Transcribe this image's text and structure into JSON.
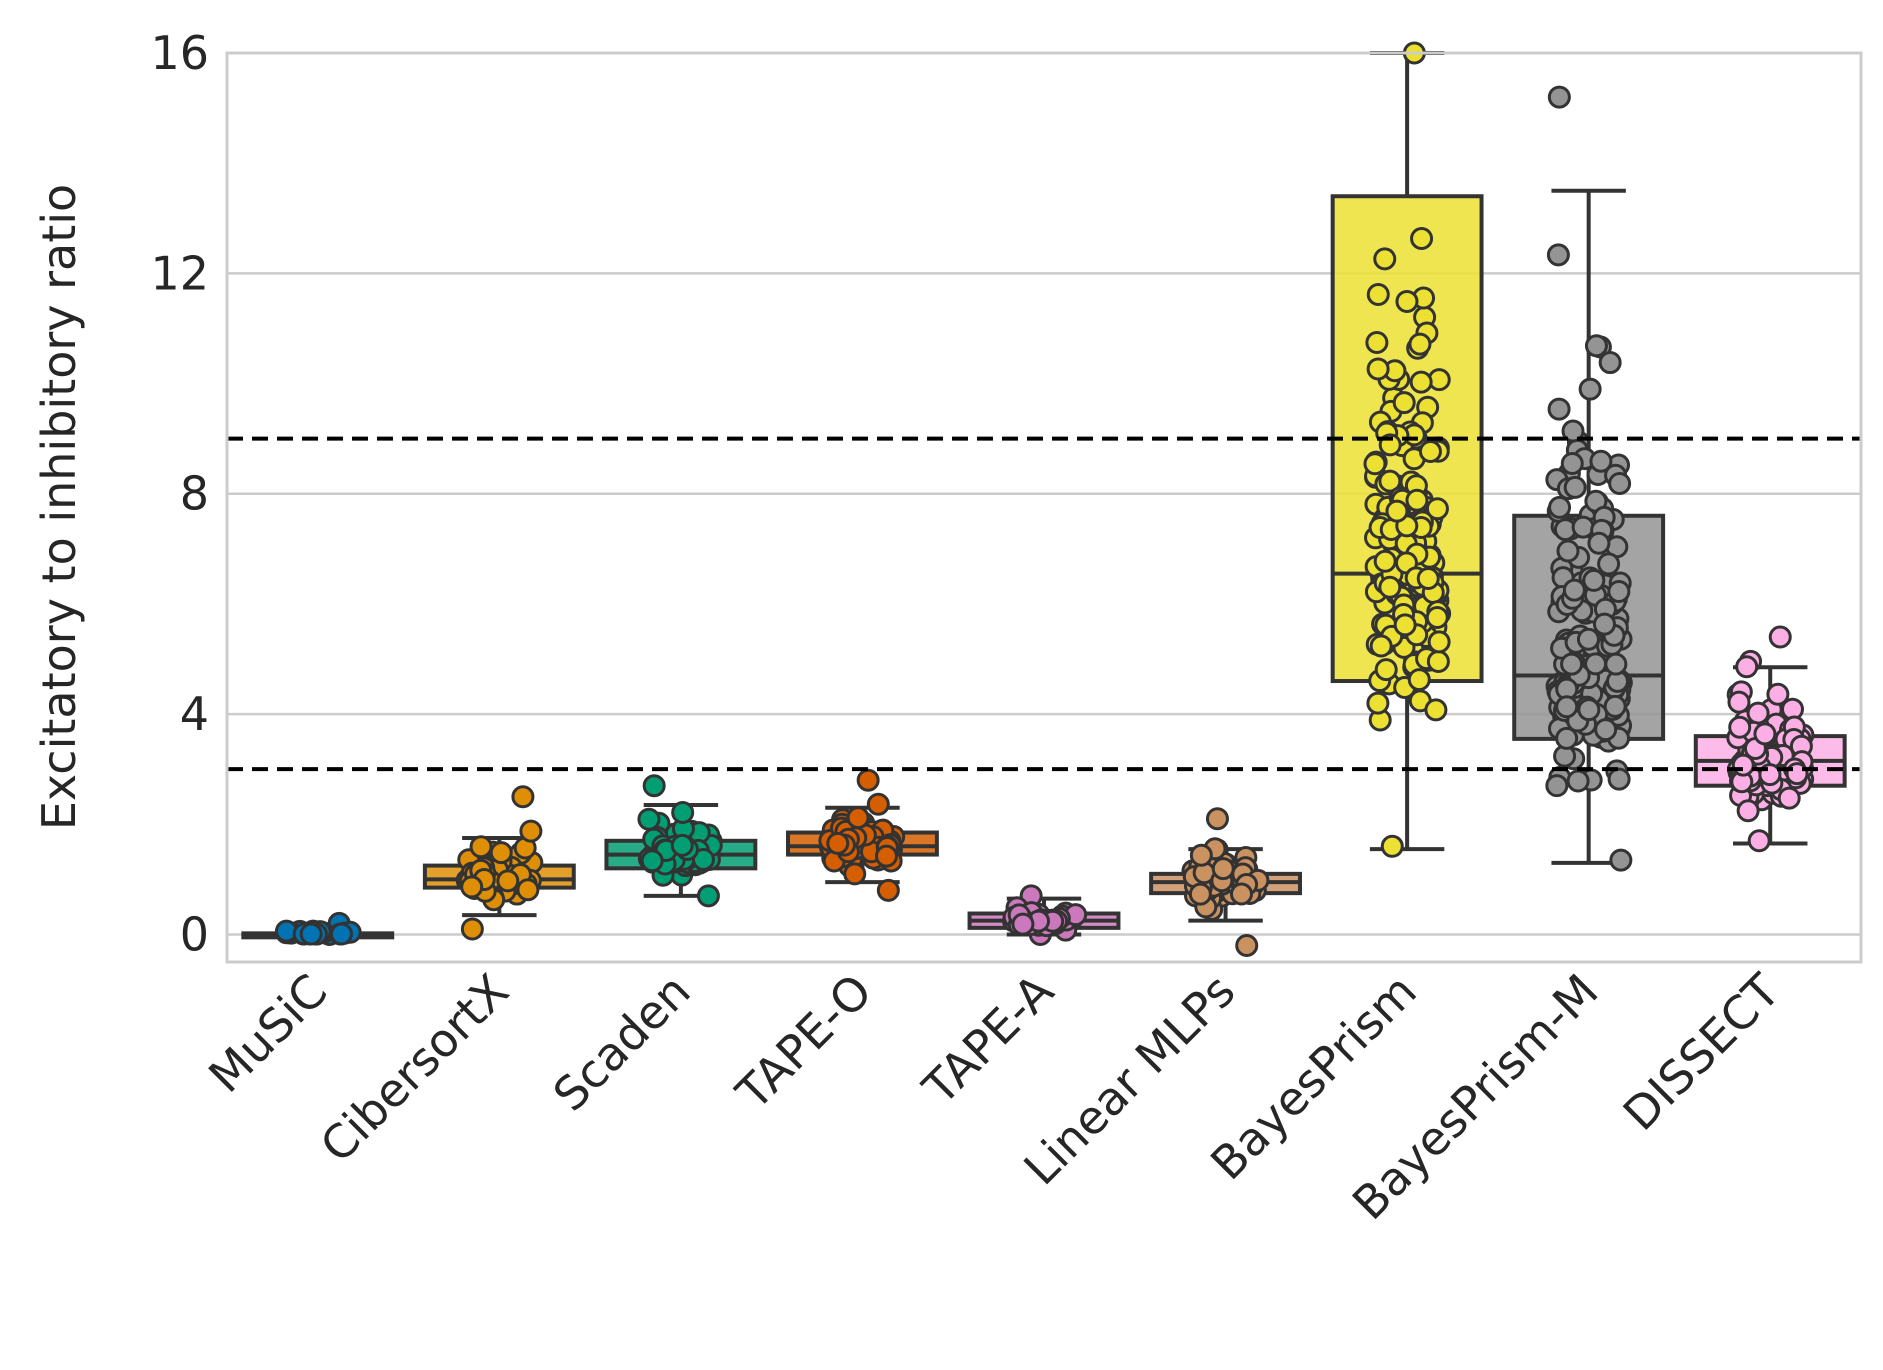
{
  "chart_data": {
    "type": "box",
    "title": "",
    "xlabel": "",
    "ylabel": "Excitatory to inhibitory ratio",
    "ylim": [
      -0.5,
      16
    ],
    "yticks": [
      "0",
      "4",
      "8",
      "12",
      "16"
    ],
    "grid": "horizontal",
    "reference_lines": [
      3,
      9
    ],
    "categories": [
      "MuSiC",
      "CibersortX",
      "Scaden",
      "TAPE-O",
      "TAPE-A",
      "Linear MLPs",
      "BayesPrism",
      "BayesPrism-M",
      "DISSECT"
    ],
    "colors": [
      "#0173b2",
      "#de8f05",
      "#029e73",
      "#d55e00",
      "#cc78bc",
      "#ca9161",
      "#ece133",
      "#949494",
      "#fbafe4"
    ],
    "series": [
      {
        "box": {
          "whisker_low": 0.0,
          "q1": 0.0,
          "median": 0.01,
          "q3": 0.02,
          "whisker_high": 0.05
        },
        "points_range": [
          0.0,
          0.2
        ],
        "n": 20
      },
      {
        "box": {
          "whisker_low": 0.35,
          "q1": 0.85,
          "median": 1.0,
          "q3": 1.25,
          "whisker_high": 1.75
        },
        "points_range": [
          0.1,
          2.5
        ],
        "n": 60
      },
      {
        "box": {
          "whisker_low": 0.7,
          "q1": 1.2,
          "median": 1.45,
          "q3": 1.7,
          "whisker_high": 2.35
        },
        "points_range": [
          0.7,
          2.7
        ],
        "n": 70
      },
      {
        "box": {
          "whisker_low": 0.95,
          "q1": 1.45,
          "median": 1.6,
          "q3": 1.85,
          "whisker_high": 2.3
        },
        "points_range": [
          0.8,
          2.8
        ],
        "n": 70
      },
      {
        "box": {
          "whisker_low": 0.0,
          "q1": 0.12,
          "median": 0.25,
          "q3": 0.38,
          "whisker_high": 0.65
        },
        "points_range": [
          0.0,
          0.7
        ],
        "n": 50
      },
      {
        "box": {
          "whisker_low": 0.25,
          "q1": 0.75,
          "median": 0.95,
          "q3": 1.1,
          "whisker_high": 1.55
        },
        "points_range": [
          -0.2,
          2.1
        ],
        "n": 60
      },
      {
        "box": {
          "whisker_low": 1.55,
          "q1": 4.6,
          "median": 6.55,
          "q3": 13.4,
          "whisker_high": 16.0
        },
        "points_range": [
          1.6,
          16.0
        ],
        "n": 200
      },
      {
        "box": {
          "whisker_low": 1.3,
          "q1": 3.55,
          "median": 4.7,
          "q3": 7.6,
          "whisker_high": 13.5
        },
        "points_range": [
          1.35,
          15.2
        ],
        "n": 220
      },
      {
        "box": {
          "whisker_low": 1.65,
          "q1": 2.7,
          "median": 3.15,
          "q3": 3.6,
          "whisker_high": 4.85
        },
        "points_range": [
          1.7,
          5.4
        ],
        "n": 120
      }
    ]
  }
}
